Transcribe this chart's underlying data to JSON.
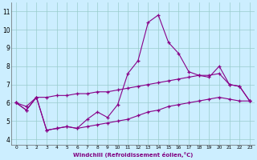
{
  "x": [
    0,
    1,
    2,
    3,
    4,
    5,
    6,
    7,
    8,
    9,
    10,
    11,
    12,
    13,
    14,
    15,
    16,
    17,
    18,
    19,
    20,
    21,
    22,
    23
  ],
  "line1": [
    6.0,
    5.6,
    6.3,
    4.5,
    4.6,
    4.7,
    4.6,
    5.1,
    5.5,
    5.2,
    5.9,
    7.6,
    8.3,
    10.4,
    10.8,
    9.3,
    8.7,
    7.7,
    7.5,
    7.4,
    8.0,
    7.0,
    6.9,
    6.1
  ],
  "line2": [
    6.0,
    5.8,
    6.3,
    6.3,
    6.4,
    6.4,
    6.5,
    6.5,
    6.6,
    6.6,
    6.7,
    6.8,
    6.9,
    7.0,
    7.1,
    7.2,
    7.3,
    7.4,
    7.5,
    7.5,
    7.6,
    7.0,
    6.9,
    6.1
  ],
  "line3": [
    6.0,
    5.6,
    6.3,
    4.5,
    4.6,
    4.7,
    4.6,
    4.7,
    4.8,
    4.9,
    5.0,
    5.1,
    5.3,
    5.5,
    5.6,
    5.8,
    5.9,
    6.0,
    6.1,
    6.2,
    6.3,
    6.2,
    6.1,
    6.1
  ],
  "line_color": "#880088",
  "bg_color": "#cceeff",
  "grid_color": "#99cccc",
  "xlabel": "Windchill (Refroidissement éolien,°C)",
  "xlim": [
    -0.5,
    23.5
  ],
  "ylim": [
    3.7,
    11.5
  ],
  "yticks": [
    4,
    5,
    6,
    7,
    8,
    9,
    10,
    11
  ],
  "xticks": [
    0,
    1,
    2,
    3,
    4,
    5,
    6,
    7,
    8,
    9,
    10,
    11,
    12,
    13,
    14,
    15,
    16,
    17,
    18,
    19,
    20,
    21,
    22,
    23
  ]
}
